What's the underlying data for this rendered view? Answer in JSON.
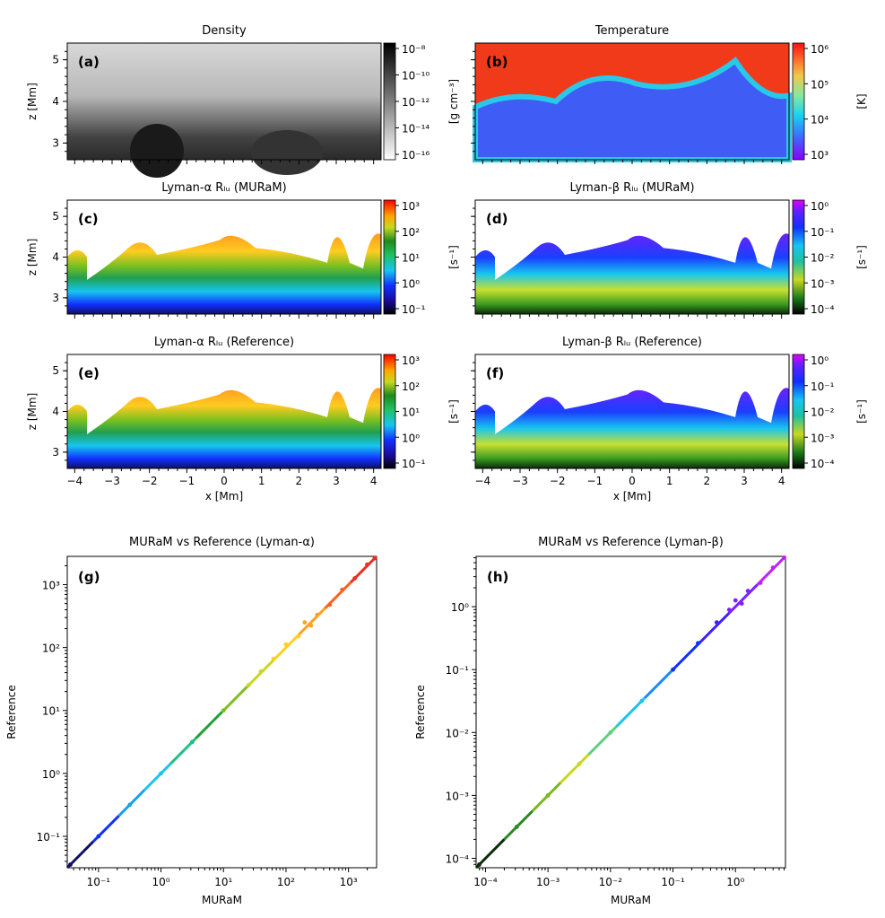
{
  "chart_data": {
    "maps": [
      {
        "id": "a",
        "type": "heatmap",
        "panel_label": "(a)",
        "title": "Density",
        "cmap": "gray_r",
        "colorbar": {
          "label": "[g cm⁻³]",
          "ticks": [
            "10⁻⁸",
            "10⁻¹⁰",
            "10⁻¹²",
            "10⁻¹⁴",
            "10⁻¹⁶"
          ]
        }
      },
      {
        "id": "b",
        "type": "heatmap",
        "panel_label": "(b)",
        "title": "Temperature",
        "cmap": "rainbow",
        "colorbar": {
          "label": "[K]",
          "ticks": [
            "10⁶",
            "10⁵",
            "10⁴",
            "10³"
          ]
        }
      },
      {
        "id": "c",
        "type": "heatmap",
        "panel_label": "(c)",
        "title": "Lyman-α Rₗᵤ (MURaM)",
        "cmap": "spectral",
        "colorbar": {
          "label": "[s⁻¹]",
          "ticks": [
            "10³",
            "10²",
            "10¹",
            "10⁰",
            "10⁻¹"
          ]
        }
      },
      {
        "id": "d",
        "type": "heatmap",
        "panel_label": "(d)",
        "title": "Lyman-β Rₗᵤ (MURaM)",
        "cmap": "spectral",
        "colorbar": {
          "label": "[s⁻¹]",
          "ticks": [
            "10⁰",
            "10⁻¹",
            "10⁻²",
            "10⁻³",
            "10⁻⁴"
          ]
        }
      },
      {
        "id": "e",
        "type": "heatmap",
        "panel_label": "(e)",
        "title": "Lyman-α Rₗᵤ (Reference)",
        "cmap": "spectral",
        "colorbar": {
          "label": "[s⁻¹]",
          "ticks": [
            "10³",
            "10²",
            "10¹",
            "10⁰",
            "10⁻¹"
          ]
        }
      },
      {
        "id": "f",
        "type": "heatmap",
        "panel_label": "(f)",
        "title": "Lyman-β Rₗᵤ (Reference)",
        "cmap": "spectral",
        "colorbar": {
          "label": "[s⁻¹]",
          "ticks": [
            "10⁰",
            "10⁻¹",
            "10⁻²",
            "10⁻³",
            "10⁻⁴"
          ]
        }
      }
    ],
    "map_axes": {
      "xlabel": "x [Mm]",
      "ylabel": "z [Mm]",
      "xlim": [
        -4.2,
        4.2
      ],
      "ylim": [
        2.6,
        5.4
      ],
      "xticks": [
        -4,
        -3,
        -2,
        -1,
        0,
        1,
        2,
        3,
        4
      ],
      "yticks": [
        3,
        4,
        5
      ]
    },
    "scatters": [
      {
        "id": "g",
        "type": "scatter",
        "panel_label": "(g)",
        "title": "MURaM vs Reference (Lyman-α)",
        "xlabel": "MURaM",
        "ylabel": "Reference",
        "xscale": "log",
        "yscale": "log",
        "lim_exp": [
          -1.5,
          3.45
        ],
        "tick_exps": [
          -1,
          0,
          1,
          2,
          3
        ],
        "points": [
          [
            -1.45,
            -1.45
          ],
          [
            -1,
            -1
          ],
          [
            -0.5,
            -0.5
          ],
          [
            0,
            0
          ],
          [
            0.5,
            0.5
          ],
          [
            1,
            1
          ],
          [
            1.4,
            1.4
          ],
          [
            1.6,
            1.62
          ],
          [
            1.8,
            1.82
          ],
          [
            2,
            2.05
          ],
          [
            2.2,
            2.18
          ],
          [
            2.3,
            2.4
          ],
          [
            2.4,
            2.35
          ],
          [
            2.5,
            2.52
          ],
          [
            2.7,
            2.68
          ],
          [
            2.9,
            2.92
          ],
          [
            3.1,
            3.1
          ],
          [
            3.3,
            3.32
          ],
          [
            3.42,
            3.42
          ]
        ]
      },
      {
        "id": "h",
        "type": "scatter",
        "panel_label": "(h)",
        "title": "MURaM vs Reference (Lyman-β)",
        "xlabel": "MURaM",
        "ylabel": "Reference",
        "xscale": "log",
        "yscale": "log",
        "lim_exp": [
          -4.15,
          0.8
        ],
        "tick_exps": [
          -4,
          -3,
          -2,
          -1,
          0
        ],
        "points": [
          [
            -4.1,
            -4.1
          ],
          [
            -3.5,
            -3.5
          ],
          [
            -3,
            -3
          ],
          [
            -2.5,
            -2.5
          ],
          [
            -2,
            -2
          ],
          [
            -1.5,
            -1.5
          ],
          [
            -1,
            -1
          ],
          [
            -0.6,
            -0.58
          ],
          [
            -0.3,
            -0.25
          ],
          [
            -0.1,
            -0.05
          ],
          [
            0,
            0.1
          ],
          [
            0.1,
            0.05
          ],
          [
            0.2,
            0.25
          ],
          [
            0.4,
            0.38
          ],
          [
            0.6,
            0.62
          ],
          [
            0.78,
            0.78
          ]
        ]
      }
    ]
  }
}
